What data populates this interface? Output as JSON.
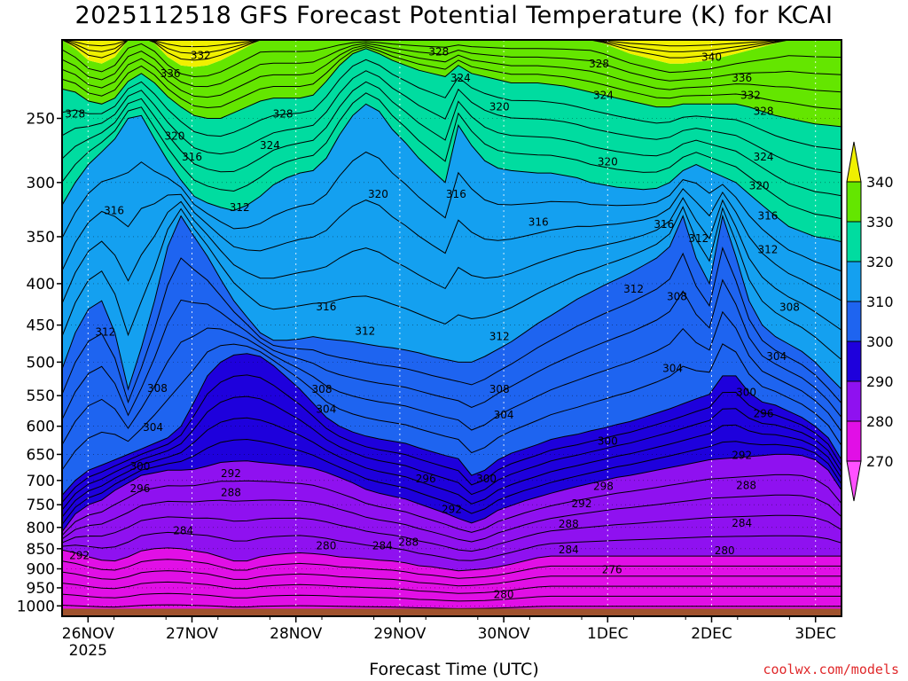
{
  "title": "2025112518 GFS Forecast Potential Temperature (K) for KCAI",
  "xlabel": "Forecast Time (UTC)",
  "watermark": "coolwx.com/models",
  "chart_data": {
    "type": "heatmap",
    "title": "2025112518 GFS Forecast Potential Temperature (K) for KCAI",
    "xlabel": "Forecast Time (UTC)",
    "ylabel": "",
    "y_scale": "log-pressure (inverted)",
    "ylim": [
      1030,
      200
    ],
    "xlim": [
      "2025-11-25T18:00",
      "2025-12-03T06:00"
    ],
    "x_ticks": [
      {
        "label": "26NOV",
        "sublabel": "2025",
        "time": "2025-11-26T00:00"
      },
      {
        "label": "27NOV",
        "time": "2025-11-27T00:00"
      },
      {
        "label": "28NOV",
        "time": "2025-11-28T00:00"
      },
      {
        "label": "29NOV",
        "time": "2025-11-29T00:00"
      },
      {
        "label": "30NOV",
        "time": "2025-11-30T00:00"
      },
      {
        "label": "1DEC",
        "time": "2025-12-01T00:00"
      },
      {
        "label": "2DEC",
        "time": "2025-12-02T00:00"
      },
      {
        "label": "3DEC",
        "time": "2025-12-03T00:00"
      }
    ],
    "y_ticks": [
      250,
      300,
      350,
      400,
      450,
      500,
      550,
      600,
      650,
      700,
      750,
      800,
      850,
      900,
      950,
      1000
    ],
    "grid": true,
    "colorbar": {
      "bins": [
        {
          "range": "<270",
          "color": "#ff50ff"
        },
        {
          "range": "270-280",
          "color": "#e10fe6"
        },
        {
          "range": "280-290",
          "color": "#8f11f0"
        },
        {
          "range": "290-300",
          "color": "#1e00dc"
        },
        {
          "range": "300-310",
          "color": "#1e64f0"
        },
        {
          "range": "310-320",
          "color": "#14a0f0"
        },
        {
          "range": "320-330",
          "color": "#00dca0"
        },
        {
          "range": "330-340",
          "color": "#64e600"
        },
        {
          "range": ">340",
          "color": "#f0f000"
        }
      ],
      "tick_labels": [
        "270",
        "280",
        "290",
        "300",
        "310",
        "320",
        "330",
        "340"
      ],
      "placement": "right"
    },
    "ground_color": "#a0522d",
    "boundaries": [
      {
        "level": 280,
        "pressures": [
          853,
          860,
          870,
          878,
          880,
          870,
          855,
          850,
          848,
          850,
          855,
          860,
          870,
          880,
          880,
          870,
          865,
          862,
          860,
          862,
          865,
          870,
          872,
          875,
          878,
          880,
          885,
          892,
          895,
          900,
          905,
          903,
          900,
          895,
          888,
          880,
          872,
          868,
          868,
          868,
          868,
          868,
          868,
          868,
          868,
          868,
          868,
          868,
          868,
          868,
          868,
          868,
          868,
          868,
          868,
          868,
          868,
          868,
          868,
          868
        ]
      },
      {
        "level": 290,
        "pressures": [
          810,
          770,
          750,
          740,
          720,
          705,
          690,
          685,
          680,
          680,
          678,
          672,
          665,
          663,
          662,
          665,
          667,
          670,
          672,
          676,
          684,
          694,
          705,
          718,
          726,
          732,
          738,
          748,
          758,
          768,
          780,
          790,
          780,
          762,
          752,
          742,
          734,
          726,
          719,
          712,
          706,
          700,
          694,
          690,
          685,
          680,
          675,
          670,
          665,
          660,
          658,
          656,
          654,
          652,
          650,
          650,
          652,
          660,
          680,
          720
        ]
      },
      {
        "level": 300,
        "pressures": [
          730,
          700,
          680,
          670,
          660,
          650,
          640,
          630,
          620,
          600,
          560,
          520,
          500,
          490,
          488,
          492,
          505,
          522,
          540,
          562,
          585,
          600,
          610,
          617,
          622,
          626,
          630,
          638,
          645,
          652,
          658,
          690,
          680,
          660,
          648,
          640,
          632,
          623,
          618,
          614,
          608,
          603,
          597,
          592,
          585,
          578,
          571,
          563,
          555,
          548,
          520,
          520,
          545,
          560,
          565,
          575,
          585,
          600,
          620,
          660
        ]
      },
      {
        "level": 310,
        "pressures": [
          510,
          460,
          430,
          420,
          460,
          540,
          480,
          420,
          360,
          330,
          350,
          370,
          395,
          420,
          440,
          460,
          470,
          470,
          468,
          465,
          468,
          470,
          472,
          475,
          478,
          480,
          483,
          487,
          492,
          496,
          500,
          500,
          492,
          482,
          472,
          460,
          448,
          438,
          428,
          418,
          410,
          402,
          395,
          388,
          380,
          372,
          360,
          330,
          372,
          400,
          330,
          370,
          420,
          450,
          465,
          475,
          485,
          500,
          520,
          540
        ]
      },
      {
        "level": 320,
        "pressures": [
          320,
          300,
          285,
          275,
          265,
          250,
          248,
          265,
          282,
          298,
          312,
          318,
          322,
          325,
          320,
          312,
          302,
          296,
          292,
          290,
          280,
          262,
          248,
          240,
          245,
          258,
          268,
          280,
          290,
          300,
          255,
          270,
          282,
          288,
          290,
          291,
          292,
          292,
          294,
          296,
          300,
          302,
          304,
          305,
          306,
          305,
          300,
          290,
          285,
          290,
          295,
          300,
          310,
          320,
          330,
          340,
          345,
          350,
          352,
          355
        ]
      },
      {
        "level": 330,
        "pressures": [
          230,
          232,
          238,
          240,
          236,
          225,
          220,
          226,
          235,
          242,
          248,
          250,
          250,
          246,
          242,
          238,
          236,
          236,
          236,
          234,
          225,
          215,
          208,
          205,
          208,
          212,
          215,
          218,
          220,
          222,
          215,
          220,
          222,
          224,
          226,
          226,
          226,
          227,
          228,
          230,
          232,
          234,
          236,
          238,
          240,
          242,
          242,
          240,
          240,
          240,
          240,
          240,
          242,
          245,
          248,
          250,
          252,
          254,
          255,
          256
        ]
      },
      {
        "level": 340,
        "pressures": [
          200,
          205,
          212,
          214,
          210,
          200,
          198,
          202,
          210,
          215,
          216,
          215,
          212,
          208,
          204,
          200,
          200,
          200,
          200,
          200,
          200,
          200,
          200,
          200,
          200,
          200,
          200,
          200,
          200,
          200,
          200,
          200,
          200,
          200,
          200,
          200,
          200,
          200,
          200,
          200,
          200,
          202,
          205,
          208,
          210,
          212,
          214,
          214,
          213,
          212,
          210,
          208,
          206,
          204,
          202,
          200,
          200,
          200,
          200,
          200
        ]
      }
    ],
    "contour_labels": [
      {
        "value": "336",
        "time": "2025-11-26T19:00",
        "p": 220
      },
      {
        "value": "332",
        "time": "2025-11-27T02:00",
        "p": 209
      },
      {
        "value": "328",
        "time": "2025-11-25T21:00",
        "p": 247
      },
      {
        "value": "320",
        "time": "2025-11-26T20:00",
        "p": 263
      },
      {
        "value": "316",
        "time": "2025-11-27T00:00",
        "p": 279
      },
      {
        "value": "328",
        "time": "2025-11-27T21:00",
        "p": 247
      },
      {
        "value": "324",
        "time": "2025-11-27T18:00",
        "p": 270
      },
      {
        "value": "328",
        "time": "2025-11-29T09:00",
        "p": 207
      },
      {
        "value": "324",
        "time": "2025-11-29T14:00",
        "p": 223
      },
      {
        "value": "320",
        "time": "2025-11-29T23:00",
        "p": 242
      },
      {
        "value": "328",
        "time": "2025-11-30T22:00",
        "p": 214
      },
      {
        "value": "324",
        "time": "2025-11-30T23:00",
        "p": 234
      },
      {
        "value": "340",
        "time": "2025-12-02T00:00",
        "p": 210
      },
      {
        "value": "336",
        "time": "2025-12-02T07:00",
        "p": 223
      },
      {
        "value": "332",
        "time": "2025-12-02T09:00",
        "p": 234
      },
      {
        "value": "328",
        "time": "2025-12-02T12:00",
        "p": 245
      },
      {
        "value": "324",
        "time": "2025-12-02T12:00",
        "p": 279
      },
      {
        "value": "320",
        "time": "2025-12-01T00:00",
        "p": 283
      },
      {
        "value": "320",
        "time": "2025-12-02T11:00",
        "p": 303
      },
      {
        "value": "316",
        "time": "2025-11-26T06:00",
        "p": 325
      },
      {
        "value": "320",
        "time": "2025-11-28T19:00",
        "p": 310
      },
      {
        "value": "316",
        "time": "2025-11-29T13:00",
        "p": 310
      },
      {
        "value": "316",
        "time": "2025-11-30T08:00",
        "p": 336
      },
      {
        "value": "316",
        "time": "2025-12-01T13:00",
        "p": 338
      },
      {
        "value": "316",
        "time": "2025-12-02T13:00",
        "p": 330
      },
      {
        "value": "312",
        "time": "2025-11-27T11:00",
        "p": 322
      },
      {
        "value": "312",
        "time": "2025-12-01T21:00",
        "p": 352
      },
      {
        "value": "312",
        "time": "2025-12-02T13:00",
        "p": 363
      },
      {
        "value": "312",
        "time": "2025-12-01T06:00",
        "p": 406
      },
      {
        "value": "308",
        "time": "2025-12-01T16:00",
        "p": 415
      },
      {
        "value": "308",
        "time": "2025-12-02T18:00",
        "p": 428
      },
      {
        "value": "316",
        "time": "2025-11-28T07:00",
        "p": 427
      },
      {
        "value": "312",
        "time": "2025-11-28T16:00",
        "p": 458
      },
      {
        "value": "312",
        "time": "2025-11-26T04:00",
        "p": 459
      },
      {
        "value": "312",
        "time": "2025-11-29T23:00",
        "p": 465
      },
      {
        "value": "304",
        "time": "2025-12-02T15:00",
        "p": 492
      },
      {
        "value": "304",
        "time": "2025-12-01T15:00",
        "p": 509
      },
      {
        "value": "308",
        "time": "2025-11-26T16:00",
        "p": 539
      },
      {
        "value": "308",
        "time": "2025-11-28T06:00",
        "p": 540
      },
      {
        "value": "308",
        "time": "2025-11-29T23:00",
        "p": 540
      },
      {
        "value": "300",
        "time": "2025-12-02T08:00",
        "p": 545
      },
      {
        "value": "304",
        "time": "2025-11-28T07:00",
        "p": 572
      },
      {
        "value": "304",
        "time": "2025-11-30T00:00",
        "p": 581
      },
      {
        "value": "296",
        "time": "2025-12-02T12:00",
        "p": 579
      },
      {
        "value": "304",
        "time": "2025-11-26T15:00",
        "p": 602
      },
      {
        "value": "300",
        "time": "2025-12-01T00:00",
        "p": 626
      },
      {
        "value": "292",
        "time": "2025-12-02T07:00",
        "p": 652
      },
      {
        "value": "300",
        "time": "2025-11-26T12:00",
        "p": 673
      },
      {
        "value": "292",
        "time": "2025-11-27T09:00",
        "p": 686
      },
      {
        "value": "296",
        "time": "2025-11-29T06:00",
        "p": 697
      },
      {
        "value": "300",
        "time": "2025-11-29T20:00",
        "p": 697
      },
      {
        "value": "298",
        "time": "2025-11-30T23:00",
        "p": 712
      },
      {
        "value": "296",
        "time": "2025-11-26T12:00",
        "p": 716
      },
      {
        "value": "288",
        "time": "2025-11-27T09:00",
        "p": 725
      },
      {
        "value": "288",
        "time": "2025-12-02T08:00",
        "p": 710
      },
      {
        "value": "292",
        "time": "2025-11-29T12:00",
        "p": 760
      },
      {
        "value": "292",
        "time": "2025-11-30T18:00",
        "p": 748
      },
      {
        "value": "284",
        "time": "2025-12-02T07:00",
        "p": 790
      },
      {
        "value": "288",
        "time": "2025-11-30T15:00",
        "p": 792
      },
      {
        "value": "284",
        "time": "2025-11-26T22:00",
        "p": 808
      },
      {
        "value": "288",
        "time": "2025-11-29T02:00",
        "p": 834
      },
      {
        "value": "284",
        "time": "2025-11-28T20:00",
        "p": 843
      },
      {
        "value": "280",
        "time": "2025-11-28T07:00",
        "p": 843
      },
      {
        "value": "284",
        "time": "2025-11-30T15:00",
        "p": 853
      },
      {
        "value": "280",
        "time": "2025-12-02T03:00",
        "p": 855
      },
      {
        "value": "292",
        "time": "2025-11-25T22:00",
        "p": 867
      },
      {
        "value": "276",
        "time": "2025-12-01T01:00",
        "p": 902
      },
      {
        "value": "280",
        "time": "2025-11-30T00:00",
        "p": 968
      }
    ]
  }
}
